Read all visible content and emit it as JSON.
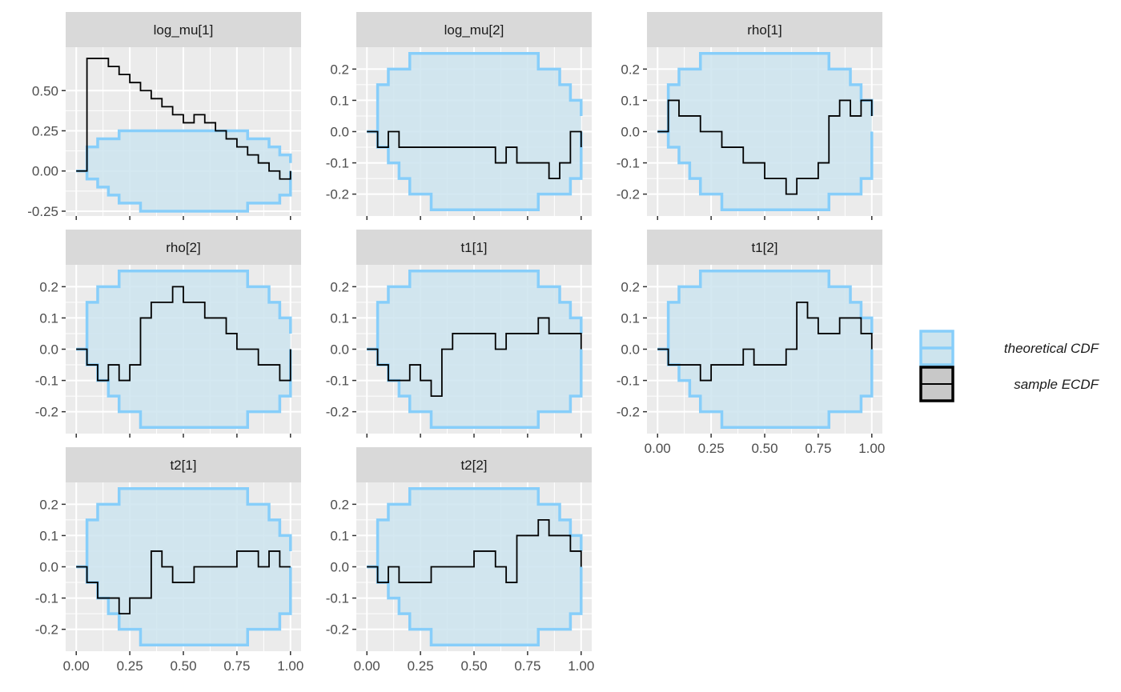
{
  "colors": {
    "panel_background": "#ebebeb",
    "strip_background": "#d9d9d9",
    "grid": "#ffffff",
    "band_fill": "#cde4ee",
    "band_line": "#87cefa",
    "ecdf_line": "#000000",
    "legend_key_fill_sample": "#c8c8c8"
  },
  "chart_data": {
    "type": "line",
    "subtype": "ECDF difference plot with simultaneous confidence bands, faceted",
    "facets_layout": {
      "columns": 3,
      "rows": 3
    },
    "x_ticks": [
      "0.00",
      "0.25",
      "0.50",
      "0.75",
      "1.00"
    ],
    "x_tick_values": [
      0,
      0.25,
      0.5,
      0.75,
      1
    ],
    "legend": {
      "position": "right",
      "entries": [
        {
          "key": "band",
          "label": "theoretical CDF"
        },
        {
          "key": "line",
          "label": "sample ECDF"
        }
      ]
    },
    "band": {
      "x": [
        0,
        0.05,
        0.1,
        0.15,
        0.2,
        0.25,
        0.3,
        0.35,
        0.4,
        0.45,
        0.5,
        0.55,
        0.6,
        0.65,
        0.7,
        0.75,
        0.8,
        0.85,
        0.9,
        0.95,
        1
      ],
      "upper": [
        0,
        0.15,
        0.2,
        0.2,
        0.25,
        0.25,
        0.25,
        0.25,
        0.25,
        0.25,
        0.25,
        0.25,
        0.25,
        0.25,
        0.25,
        0.25,
        0.2,
        0.2,
        0.15,
        0.1,
        0.05
      ],
      "lower": [
        0,
        -0.05,
        -0.1,
        -0.15,
        -0.2,
        -0.2,
        -0.25,
        -0.25,
        -0.25,
        -0.25,
        -0.25,
        -0.25,
        -0.25,
        -0.25,
        -0.25,
        -0.25,
        -0.2,
        -0.2,
        -0.2,
        -0.15,
        0
      ]
    },
    "panels": [
      {
        "title": "log_mu[1]",
        "ylim": [
          -0.28,
          0.77
        ],
        "y_ticks": [
          "-0.25",
          "0.00",
          "0.25",
          "0.50"
        ],
        "y_tick_values": [
          -0.25,
          0,
          0.25,
          0.5
        ],
        "ecdf_diff": [
          0,
          0.7,
          0.7,
          0.65,
          0.6,
          0.55,
          0.5,
          0.45,
          0.4,
          0.35,
          0.3,
          0.35,
          0.3,
          0.25,
          0.2,
          0.15,
          0.1,
          0.05,
          0,
          -0.05,
          0
        ]
      },
      {
        "title": "log_mu[2]",
        "ylim": [
          -0.27,
          0.27
        ],
        "y_ticks": [
          "-0.2",
          "-0.1",
          "0.0",
          "0.1",
          "0.2"
        ],
        "y_tick_values": [
          -0.2,
          -0.1,
          0,
          0.1,
          0.2
        ],
        "ecdf_diff": [
          0,
          -0.05,
          0,
          -0.05,
          -0.05,
          -0.05,
          -0.05,
          -0.05,
          -0.05,
          -0.05,
          -0.05,
          -0.05,
          -0.1,
          -0.05,
          -0.1,
          -0.1,
          -0.1,
          -0.15,
          -0.1,
          0,
          -0.05
        ]
      },
      {
        "title": "rho[1]",
        "ylim": [
          -0.27,
          0.27
        ],
        "y_ticks": [
          "-0.2",
          "-0.1",
          "0.0",
          "0.1",
          "0.2"
        ],
        "y_tick_values": [
          -0.2,
          -0.1,
          0,
          0.1,
          0.2
        ],
        "ecdf_diff": [
          0,
          0.1,
          0.05,
          0.05,
          0,
          0,
          -0.05,
          -0.05,
          -0.1,
          -0.1,
          -0.15,
          -0.15,
          -0.2,
          -0.15,
          -0.15,
          -0.1,
          0.05,
          0.1,
          0.05,
          0.1,
          0.05
        ]
      },
      {
        "title": "rho[2]",
        "ylim": [
          -0.27,
          0.27
        ],
        "y_ticks": [
          "-0.2",
          "-0.1",
          "0.0",
          "0.1",
          "0.2"
        ],
        "y_tick_values": [
          -0.2,
          -0.1,
          0,
          0.1,
          0.2
        ],
        "ecdf_diff": [
          0,
          -0.05,
          -0.1,
          -0.05,
          -0.1,
          -0.05,
          0.1,
          0.15,
          0.15,
          0.2,
          0.15,
          0.15,
          0.1,
          0.1,
          0.05,
          0,
          0,
          -0.05,
          -0.05,
          -0.1,
          0
        ]
      },
      {
        "title": "t1[1]",
        "ylim": [
          -0.27,
          0.27
        ],
        "y_ticks": [
          "-0.2",
          "-0.1",
          "0.0",
          "0.1",
          "0.2"
        ],
        "y_tick_values": [
          -0.2,
          -0.1,
          0,
          0.1,
          0.2
        ],
        "ecdf_diff": [
          0,
          -0.05,
          -0.1,
          -0.1,
          -0.05,
          -0.1,
          -0.15,
          0,
          0.05,
          0.05,
          0.05,
          0.05,
          0,
          0.05,
          0.05,
          0.05,
          0.1,
          0.05,
          0.05,
          0.05,
          0
        ]
      },
      {
        "title": "t1[2]",
        "ylim": [
          -0.27,
          0.27
        ],
        "y_ticks": [
          "-0.2",
          "-0.1",
          "0.0",
          "0.1",
          "0.2"
        ],
        "y_tick_values": [
          -0.2,
          -0.1,
          0,
          0.1,
          0.2
        ],
        "ecdf_diff": [
          0,
          -0.05,
          -0.05,
          -0.05,
          -0.1,
          -0.05,
          -0.05,
          -0.05,
          0,
          -0.05,
          -0.05,
          -0.05,
          0,
          0.15,
          0.1,
          0.05,
          0.05,
          0.1,
          0.1,
          0.05,
          0
        ]
      },
      {
        "title": "t2[1]",
        "ylim": [
          -0.27,
          0.27
        ],
        "y_ticks": [
          "-0.2",
          "-0.1",
          "0.0",
          "0.1",
          "0.2"
        ],
        "y_tick_values": [
          -0.2,
          -0.1,
          0,
          0.1,
          0.2
        ],
        "ecdf_diff": [
          0,
          -0.05,
          -0.1,
          -0.1,
          -0.15,
          -0.1,
          -0.1,
          0.05,
          0,
          -0.05,
          -0.05,
          0,
          0,
          0,
          0,
          0.05,
          0.05,
          0,
          0.05,
          0,
          0
        ]
      },
      {
        "title": "t2[2]",
        "ylim": [
          -0.27,
          0.27
        ],
        "y_ticks": [
          "-0.2",
          "-0.1",
          "0.0",
          "0.1",
          "0.2"
        ],
        "y_tick_values": [
          -0.2,
          -0.1,
          0,
          0.1,
          0.2
        ],
        "ecdf_diff": [
          0,
          -0.05,
          0,
          -0.05,
          -0.05,
          -0.05,
          0,
          0,
          0,
          0,
          0.05,
          0.05,
          0,
          -0.05,
          0.1,
          0.1,
          0.15,
          0.1,
          0.1,
          0.05,
          0
        ]
      }
    ]
  }
}
